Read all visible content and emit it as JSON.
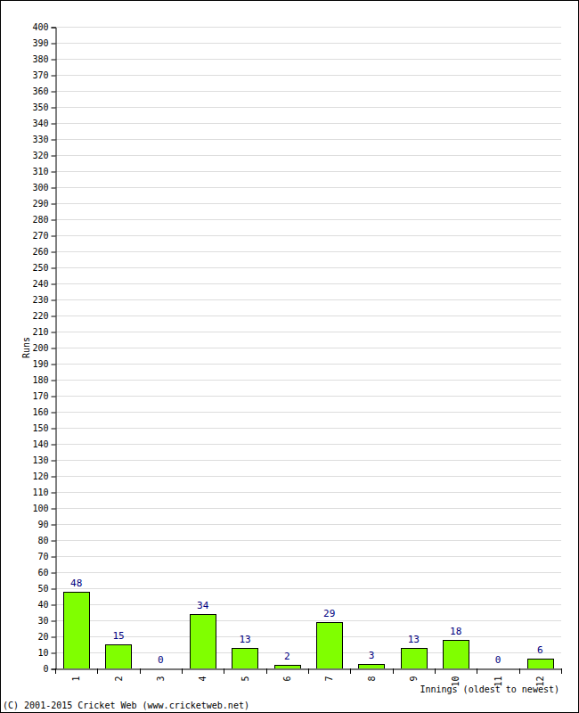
{
  "chart_data": {
    "type": "bar",
    "categories": [
      "1",
      "2",
      "3",
      "4",
      "5",
      "6",
      "7",
      "8",
      "9",
      "10",
      "11",
      "12"
    ],
    "values": [
      48,
      15,
      0,
      34,
      13,
      2,
      29,
      3,
      13,
      18,
      0,
      6
    ],
    "color": "#80ff00",
    "y_label": "Runs",
    "x_label": "Innings (oldest to newest)",
    "source": "(C) 2001-2015 Cricket Web (www.cricketweb.net)",
    "ylim": [
      0,
      400
    ],
    "yticks": [
      0,
      10,
      20,
      30,
      40,
      50,
      60,
      70,
      80,
      90,
      100,
      110,
      120,
      130,
      140,
      150,
      160,
      170,
      180,
      190,
      200,
      210,
      220,
      230,
      240,
      250,
      260,
      270,
      280,
      290,
      300,
      310,
      320,
      330,
      340,
      350,
      360,
      370,
      380,
      390,
      400
    ],
    "grid": true,
    "data_labels": true
  }
}
